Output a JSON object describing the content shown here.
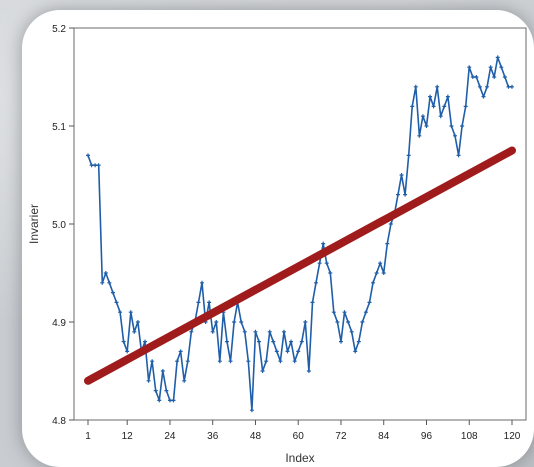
{
  "chart_data": {
    "type": "line",
    "title": "",
    "xlabel": "Index",
    "ylabel": "Invarier",
    "xlim": [
      1,
      120
    ],
    "ylim": [
      4.8,
      5.2
    ],
    "x_ticks": [
      1,
      12,
      24,
      36,
      48,
      60,
      72,
      84,
      96,
      108,
      120
    ],
    "x_tick_labels": [
      "1",
      "12",
      "24",
      "36",
      "48",
      "60",
      "72",
      "84",
      "96",
      "108",
      "120"
    ],
    "y_ticks": [
      4.8,
      4.9,
      5.0,
      5.1,
      5.2
    ],
    "y_tick_labels": [
      "4.8",
      "4.9",
      "5.0",
      "5.1",
      "5.2"
    ],
    "grid": false,
    "series": [
      {
        "color": "#1f5ea8",
        "style": "line-markers",
        "x": [
          1,
          2,
          3,
          4,
          5,
          6,
          7,
          8,
          9,
          10,
          11,
          12,
          13,
          14,
          15,
          16,
          17,
          18,
          19,
          20,
          21,
          22,
          23,
          24,
          25,
          26,
          27,
          28,
          29,
          30,
          31,
          32,
          33,
          34,
          35,
          36,
          37,
          38,
          39,
          40,
          41,
          42,
          43,
          44,
          45,
          46,
          47,
          48,
          49,
          50,
          51,
          52,
          53,
          54,
          55,
          56,
          57,
          58,
          59,
          60,
          61,
          62,
          63,
          64,
          65,
          66,
          67,
          68,
          69,
          70,
          71,
          72,
          73,
          74,
          75,
          76,
          77,
          78,
          79,
          80,
          81,
          82,
          83,
          84,
          85,
          86,
          87,
          88,
          89,
          90,
          91,
          92,
          93,
          94,
          95,
          96,
          97,
          98,
          99,
          100,
          101,
          102,
          103,
          104,
          105,
          106,
          107,
          108,
          109,
          110,
          111,
          112,
          113,
          114,
          115,
          116,
          117,
          118,
          119,
          120
        ],
        "y": [
          5.07,
          5.06,
          5.06,
          5.06,
          4.94,
          4.95,
          4.94,
          4.93,
          4.92,
          4.91,
          4.88,
          4.87,
          4.91,
          4.89,
          4.9,
          4.87,
          4.88,
          4.84,
          4.86,
          4.83,
          4.82,
          4.85,
          4.83,
          4.82,
          4.82,
          4.86,
          4.87,
          4.84,
          4.86,
          4.89,
          4.9,
          4.92,
          4.94,
          4.9,
          4.92,
          4.89,
          4.9,
          4.86,
          4.91,
          4.88,
          4.86,
          4.9,
          4.92,
          4.9,
          4.89,
          4.86,
          4.81,
          4.89,
          4.88,
          4.85,
          4.86,
          4.89,
          4.88,
          4.87,
          4.86,
          4.89,
          4.87,
          4.88,
          4.86,
          4.87,
          4.88,
          4.9,
          4.85,
          4.92,
          4.94,
          4.96,
          4.98,
          4.96,
          4.95,
          4.91,
          4.9,
          4.88,
          4.91,
          4.9,
          4.89,
          4.87,
          4.88,
          4.9,
          4.91,
          4.92,
          4.94,
          4.95,
          4.96,
          4.95,
          4.98,
          5.0,
          5.01,
          5.03,
          5.05,
          5.03,
          5.07,
          5.12,
          5.14,
          5.09,
          5.11,
          5.1,
          5.13,
          5.12,
          5.14,
          5.11,
          5.12,
          5.13,
          5.1,
          5.09,
          5.07,
          5.1,
          5.12,
          5.16,
          5.15,
          5.15,
          5.14,
          5.13,
          5.14,
          5.16,
          5.15,
          5.17,
          5.16,
          5.15,
          5.14,
          5.14
        ]
      },
      {
        "color": "#a01c1c",
        "style": "thick-line",
        "x": [
          1,
          120
        ],
        "y": [
          4.84,
          5.075
        ]
      }
    ]
  }
}
